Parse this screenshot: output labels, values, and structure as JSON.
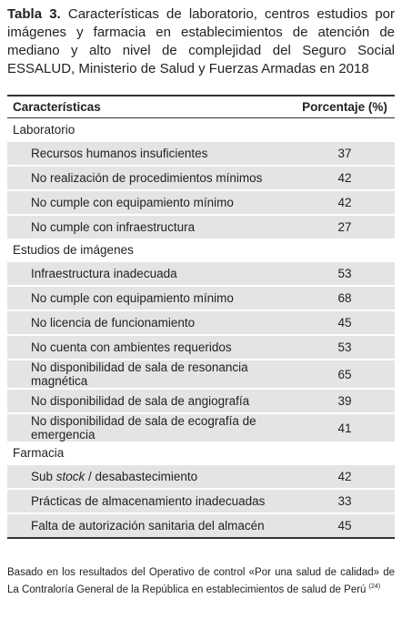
{
  "title": {
    "label": "Tabla 3.",
    "text": "Características de laboratorio, centros estudios por imágenes y farmacia en establecimientos de atención de mediano y alto nivel de complejidad del Seguro Social ESSALUD, Ministerio de Salud y Fuerzas Armadas en 2018"
  },
  "table": {
    "headers": [
      "Características",
      "Porcentaje (%)"
    ],
    "groups": [
      {
        "name": "Laboratorio",
        "rows": [
          {
            "label": [
              "Recursos humanos insuficientes"
            ],
            "value": 37
          },
          {
            "label": [
              "No realización de procedimientos mínimos"
            ],
            "value": 42
          },
          {
            "label": [
              "No cumple con equipamiento mínimo"
            ],
            "value": 42
          },
          {
            "label": [
              "No cumple con infraestructura"
            ],
            "value": 27
          }
        ]
      },
      {
        "name": "Estudios de imágenes",
        "rows": [
          {
            "label": [
              "Infraestructura inadecuada"
            ],
            "value": 53
          },
          {
            "label": [
              "No cumple con equipamiento mínimo"
            ],
            "value": 68
          },
          {
            "label": [
              "No licencia de funcionamiento"
            ],
            "value": 45
          },
          {
            "label": [
              "No cuenta con ambientes requeridos"
            ],
            "value": 53
          },
          {
            "label": [
              "No disponibilidad de sala de resonancia magnética"
            ],
            "value": 65
          },
          {
            "label": [
              "No disponibilidad de sala de angiografía"
            ],
            "value": 39
          },
          {
            "label": [
              "No disponibilidad de sala de ecografía de emergencia"
            ],
            "value": 41
          }
        ]
      },
      {
        "name": "Farmacia",
        "rows": [
          {
            "label": [
              "Sub ",
              "stock",
              " / desabastecimiento"
            ],
            "value": 42
          },
          {
            "label": [
              "Prácticas de almacenamiento inadecuadas"
            ],
            "value": 33
          },
          {
            "label": [
              "Falta de autorización sanitaria del almacén"
            ],
            "value": 45
          }
        ]
      }
    ]
  },
  "footnote": {
    "text": "Basado en los resultados del Operativo de control «Por una salud de calidad» de La Contraloría General de la República en establecimientos de salud de Perú",
    "reference": "(24)"
  }
}
